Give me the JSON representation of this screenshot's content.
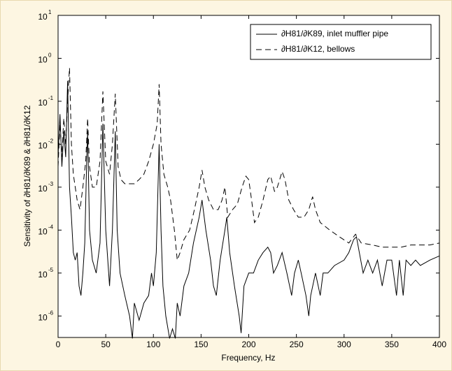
{
  "chart_data": {
    "type": "line",
    "xlabel": "Frequency, Hz",
    "ylabel": "Sensitivity of ∂H81/∂K89 & ∂H81/∂K12",
    "xlim": [
      0,
      400
    ],
    "xticks": [
      0,
      50,
      100,
      150,
      200,
      250,
      300,
      350,
      400
    ],
    "ylim": [
      3.162e-07,
      10
    ],
    "yscale": "log",
    "yticks": [
      {
        "value": 10,
        "label": "10",
        "sup": "1"
      },
      {
        "value": 1,
        "label": "10",
        "sup": "0"
      },
      {
        "value": 0.1,
        "label": "10",
        "sup": "-1"
      },
      {
        "value": 0.01,
        "label": "10",
        "sup": "-2"
      },
      {
        "value": 0.001,
        "label": "10",
        "sup": "-3"
      },
      {
        "value": 0.0001,
        "label": "10",
        "sup": "-4"
      },
      {
        "value": 1e-05,
        "label": "10",
        "sup": "-5"
      },
      {
        "value": 1e-06,
        "label": "10",
        "sup": "-6"
      }
    ],
    "legend": "upper right",
    "series": [
      {
        "name": "∂H81/∂K89, inlet muffler pipe",
        "color": "#000000",
        "dash": "solid",
        "x": [
          0,
          2,
          4,
          6,
          8,
          10,
          12,
          14,
          16,
          18,
          20,
          22,
          24,
          26,
          28,
          30,
          31,
          33,
          36,
          40,
          44,
          47,
          50,
          54,
          57,
          60,
          62,
          65,
          70,
          75,
          78,
          80,
          85,
          90,
          95,
          98,
          100,
          103,
          106,
          108,
          110,
          113,
          117,
          120,
          123,
          125,
          128,
          132,
          137,
          142,
          148,
          151,
          155,
          160,
          163,
          166,
          170,
          175,
          177,
          180,
          185,
          190,
          192,
          195,
          200,
          205,
          210,
          215,
          220,
          223,
          226,
          230,
          235,
          240,
          245,
          248,
          252,
          255,
          260,
          263,
          265,
          270,
          275,
          278,
          283,
          290,
          300,
          305,
          310,
          313,
          316,
          320,
          325,
          330,
          335,
          340,
          345,
          350,
          355,
          358,
          362,
          365,
          370,
          375,
          380,
          390,
          400
        ],
        "values": [
          0.005,
          0.05,
          0.003,
          0.02,
          0.005,
          0.3,
          0.001,
          0.0002,
          3e-05,
          2e-05,
          3e-05,
          5e-06,
          3e-06,
          1e-05,
          5e-05,
          0.004,
          0.02,
          0.0001,
          2e-05,
          1e-05,
          5e-05,
          0.03,
          0.0001,
          5e-06,
          0.0001,
          0.02,
          0.0001,
          1e-05,
          3e-06,
          1e-06,
          3e-07,
          2e-06,
          8e-07,
          2e-06,
          3e-06,
          1e-05,
          5e-06,
          3e-05,
          0.01,
          0.0001,
          5e-06,
          1e-06,
          3e-07,
          5e-07,
          3e-07,
          2e-06,
          1e-06,
          5e-06,
          1e-05,
          5e-05,
          0.0002,
          0.0005,
          0.0001,
          2e-05,
          5e-06,
          3e-06,
          2e-05,
          0.0001,
          0.0002,
          3e-05,
          5e-06,
          1e-06,
          4e-07,
          5e-06,
          1e-05,
          1e-05,
          2e-05,
          3e-05,
          4e-05,
          3e-05,
          1e-05,
          1.5e-05,
          3e-05,
          1e-05,
          3e-06,
          1e-05,
          2e-05,
          1e-05,
          3e-06,
          1e-06,
          3e-06,
          1e-05,
          3e-06,
          1e-05,
          1e-05,
          1.5e-05,
          2e-05,
          3e-05,
          6e-05,
          7e-05,
          3e-05,
          1e-05,
          2e-05,
          1e-05,
          2e-05,
          5e-06,
          2e-05,
          2e-05,
          3e-06,
          2e-05,
          3e-06,
          2e-05,
          1.5e-05,
          2e-05,
          1.5e-05,
          2e-05,
          2.5e-05
        ]
      },
      {
        "name": "∂H81/∂K12, bellows",
        "color": "#000000",
        "dash": "dashed",
        "x": [
          0,
          2,
          4,
          6,
          8,
          10,
          12,
          14,
          16,
          18,
          20,
          23,
          26,
          29,
          31,
          33,
          36,
          40,
          44,
          47,
          50,
          54,
          57,
          60,
          63,
          66,
          70,
          75,
          80,
          85,
          90,
          95,
          100,
          104,
          106,
          108,
          111,
          115,
          118,
          122,
          125,
          128,
          132,
          138,
          143,
          148,
          151,
          154,
          158,
          163,
          168,
          172,
          175,
          178,
          183,
          188,
          193,
          197,
          200,
          203,
          206,
          210,
          215,
          220,
          223,
          227,
          230,
          235,
          238,
          242,
          247,
          252,
          258,
          263,
          267,
          270,
          275,
          285,
          295,
          305,
          312,
          318,
          330,
          340,
          350,
          360,
          370,
          380,
          390,
          400
        ],
        "values": [
          0.003,
          0.03,
          0.005,
          0.04,
          0.01,
          0.1,
          0.6,
          0.01,
          0.002,
          0.001,
          0.0005,
          0.0003,
          0.001,
          0.004,
          0.04,
          0.003,
          0.001,
          0.001,
          0.004,
          0.17,
          0.004,
          0.002,
          0.01,
          0.15,
          0.003,
          0.0015,
          0.0012,
          0.0012,
          0.0012,
          0.0015,
          0.002,
          0.004,
          0.01,
          0.03,
          0.25,
          0.01,
          0.002,
          0.001,
          0.0005,
          0.0001,
          2e-05,
          3e-05,
          6e-05,
          0.0001,
          0.0003,
          0.001,
          0.0025,
          0.001,
          0.0005,
          0.0003,
          0.0003,
          0.0005,
          0.001,
          0.0002,
          0.0003,
          0.0004,
          0.001,
          0.0018,
          0.0015,
          0.0005,
          0.00015,
          0.0002,
          0.0005,
          0.0015,
          0.0018,
          0.0008,
          0.001,
          0.0023,
          0.0015,
          0.0005,
          0.0003,
          0.0002,
          0.0002,
          0.0003,
          0.0006,
          0.0003,
          0.00015,
          0.0001,
          7e-05,
          5e-05,
          8e-05,
          5e-05,
          4.5e-05,
          4e-05,
          4e-05,
          4e-05,
          4.5e-05,
          4.5e-05,
          4.5e-05,
          5e-05
        ]
      }
    ]
  }
}
